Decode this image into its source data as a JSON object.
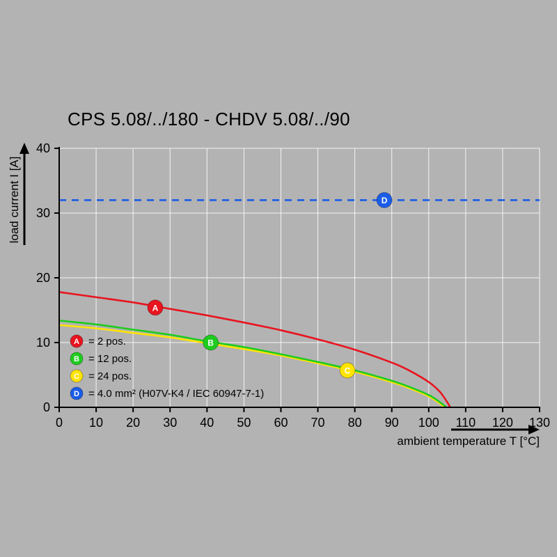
{
  "chart_data": {
    "type": "line",
    "title": "CPS 5.08/../180 - CHDV 5.08/../90",
    "xlabel": "ambient temperature T [°C]",
    "ylabel": "load current I [A]",
    "xlim": [
      0,
      130
    ],
    "ylim": [
      0,
      40
    ],
    "xticks": [
      0,
      10,
      20,
      30,
      40,
      50,
      60,
      70,
      80,
      90,
      100,
      110,
      120,
      130
    ],
    "yticks": [
      0,
      10,
      20,
      30,
      40
    ],
    "grid": true,
    "legend_position": "bottom-left-inside",
    "colors": {
      "background": "#b3b3b3",
      "gridline": "#ffffff",
      "axis": "#000000"
    },
    "series": [
      {
        "id": "A",
        "legend_label": "= 2 pos.",
        "color": "#e8141e",
        "line": "solid",
        "marker_at": [
          26,
          15.4
        ],
        "points": [
          [
            0,
            17.8
          ],
          [
            10,
            17.0
          ],
          [
            20,
            16.2
          ],
          [
            30,
            15.2
          ],
          [
            40,
            14.2
          ],
          [
            50,
            13.1
          ],
          [
            60,
            11.9
          ],
          [
            70,
            10.5
          ],
          [
            80,
            8.9
          ],
          [
            90,
            6.9
          ],
          [
            95,
            5.6
          ],
          [
            100,
            3.9
          ],
          [
            103,
            2.4
          ],
          [
            105,
            0.8
          ],
          [
            105.8,
            0
          ]
        ]
      },
      {
        "id": "B",
        "legend_label": "= 12 pos.",
        "color": "#1ecb1e",
        "line": "solid",
        "marker_at": [
          41,
          10.0
        ],
        "points": [
          [
            0,
            13.4
          ],
          [
            10,
            12.8
          ],
          [
            20,
            12.0
          ],
          [
            30,
            11.2
          ],
          [
            40,
            10.2
          ],
          [
            50,
            9.3
          ],
          [
            60,
            8.2
          ],
          [
            70,
            7.0
          ],
          [
            80,
            5.7
          ],
          [
            90,
            4.1
          ],
          [
            95,
            3.1
          ],
          [
            100,
            1.9
          ],
          [
            103,
            0.8
          ],
          [
            104.8,
            0
          ]
        ]
      },
      {
        "id": "C",
        "legend_label": "= 24 pos.",
        "color": "#ffe400",
        "line": "solid",
        "marker_at": [
          78,
          5.7
        ],
        "points": [
          [
            0,
            12.7
          ],
          [
            10,
            12.2
          ],
          [
            20,
            11.5
          ],
          [
            30,
            10.8
          ],
          [
            40,
            9.9
          ],
          [
            50,
            9.0
          ],
          [
            60,
            8.0
          ],
          [
            70,
            6.8
          ],
          [
            80,
            5.5
          ],
          [
            90,
            3.9
          ],
          [
            95,
            2.9
          ],
          [
            100,
            1.7
          ],
          [
            103,
            0.6
          ],
          [
            104.3,
            0
          ]
        ]
      },
      {
        "id": "D",
        "legend_label": "= 4.0 mm² (H07V-K4 / IEC 60947-7-1)",
        "color": "#1b5ce8",
        "line": "dashed",
        "marker_at": [
          88,
          32
        ],
        "points": [
          [
            0,
            32
          ],
          [
            130,
            32
          ]
        ]
      }
    ]
  }
}
